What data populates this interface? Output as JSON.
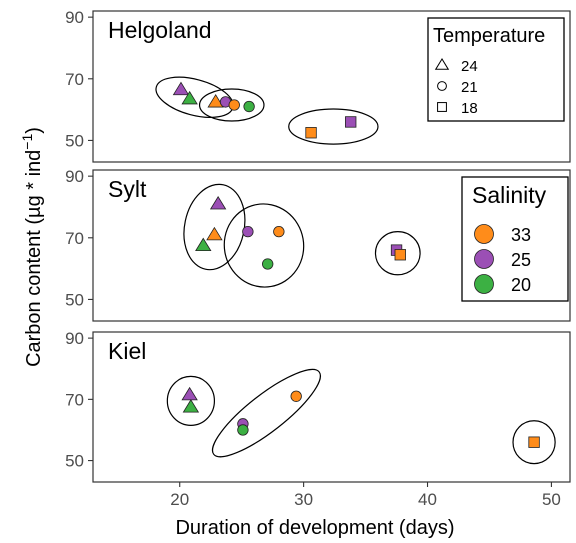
{
  "chart_data": {
    "type": "scatter",
    "xlabel": "Duration of development (days)",
    "ylabel": "Carbon content (µg * ind",
    "ylabel_superscript": "−1",
    "ylabel_suffix": ")",
    "xlim": [
      13,
      51.5
    ],
    "x_ticks": [
      20,
      30,
      40,
      50
    ],
    "ylim": [
      43,
      92
    ],
    "y_ticks": [
      50,
      70,
      90
    ],
    "grid": false,
    "colors": {
      "33": "#ff8c1a",
      "25": "#9b4fb5",
      "20": "#3cb043"
    },
    "legend_temperature": {
      "title": "Temperature",
      "placement": "top-right",
      "entries": [
        {
          "label": "24",
          "shape": "triangle"
        },
        {
          "label": "21",
          "shape": "circle"
        },
        {
          "label": "18",
          "shape": "square"
        }
      ]
    },
    "legend_salinity": {
      "title": "Salinity",
      "placement": "right",
      "entries": [
        {
          "label": "33",
          "color_key": "33"
        },
        {
          "label": "25",
          "color_key": "25"
        },
        {
          "label": "20",
          "color_key": "20"
        }
      ]
    },
    "facets": [
      {
        "name": "Helgoland",
        "points": [
          {
            "x": 20.1,
            "y": 66.5,
            "temperature": 24,
            "salinity": 25
          },
          {
            "x": 20.8,
            "y": 63.5,
            "temperature": 24,
            "salinity": 20
          },
          {
            "x": 22.9,
            "y": 62.5,
            "temperature": 24,
            "salinity": 33
          },
          {
            "x": 23.7,
            "y": 62.5,
            "temperature": 21,
            "salinity": 25
          },
          {
            "x": 24.4,
            "y": 61.5,
            "temperature": 21,
            "salinity": 33
          },
          {
            "x": 25.6,
            "y": 61.0,
            "temperature": 21,
            "salinity": 20
          },
          {
            "x": 30.6,
            "y": 52.5,
            "temperature": 18,
            "salinity": 33
          },
          {
            "x": 33.8,
            "y": 56.0,
            "temperature": 18,
            "salinity": 25
          }
        ],
        "clusters": [
          {
            "cx": 21.2,
            "cy": 64.0,
            "rx": 3.2,
            "ry": 5.8,
            "angle": 15
          },
          {
            "cx": 24.2,
            "cy": 61.5,
            "rx": 2.6,
            "ry": 5.2,
            "angle": 0
          },
          {
            "cx": 32.4,
            "cy": 54.5,
            "rx": 3.6,
            "ry": 5.7,
            "angle": 0
          }
        ]
      },
      {
        "name": "Sylt",
        "points": [
          {
            "x": 23.1,
            "y": 81.0,
            "temperature": 24,
            "salinity": 25
          },
          {
            "x": 22.8,
            "y": 71.0,
            "temperature": 24,
            "salinity": 33
          },
          {
            "x": 21.9,
            "y": 67.5,
            "temperature": 24,
            "salinity": 20
          },
          {
            "x": 25.5,
            "y": 72.0,
            "temperature": 21,
            "salinity": 25
          },
          {
            "x": 28.0,
            "y": 72.0,
            "temperature": 21,
            "salinity": 33
          },
          {
            "x": 27.1,
            "y": 61.5,
            "temperature": 21,
            "salinity": 20
          },
          {
            "x": 37.5,
            "y": 66.0,
            "temperature": 18,
            "salinity": 25
          },
          {
            "x": 37.8,
            "y": 64.5,
            "temperature": 18,
            "salinity": 33
          }
        ],
        "clusters": [
          {
            "cx": 22.8,
            "cy": 73.5,
            "rx": 2.4,
            "ry": 14.0,
            "angle": 12
          },
          {
            "cx": 26.8,
            "cy": 67.5,
            "rx": 3.2,
            "ry": 13.5,
            "angle": -10
          },
          {
            "cx": 37.6,
            "cy": 65.0,
            "rx": 1.8,
            "ry": 7.0,
            "angle": 0
          }
        ]
      },
      {
        "name": "Kiel",
        "points": [
          {
            "x": 20.8,
            "y": 71.5,
            "temperature": 24,
            "salinity": 25
          },
          {
            "x": 20.9,
            "y": 67.5,
            "temperature": 24,
            "salinity": 20
          },
          {
            "x": 25.1,
            "y": 62.0,
            "temperature": 21,
            "salinity": 25
          },
          {
            "x": 25.1,
            "y": 60.0,
            "temperature": 21,
            "salinity": 20
          },
          {
            "x": 29.4,
            "y": 71.0,
            "temperature": 21,
            "salinity": 33
          },
          {
            "x": 48.6,
            "y": 56.0,
            "temperature": 18,
            "salinity": 33
          }
        ],
        "clusters": [
          {
            "cx": 20.9,
            "cy": 69.5,
            "rx": 1.9,
            "ry": 8.0,
            "angle": 0
          },
          {
            "cx": 27.0,
            "cy": 65.5,
            "rx": 5.4,
            "ry": 6.0,
            "angle": -38
          },
          {
            "cx": 48.6,
            "cy": 56.0,
            "rx": 1.7,
            "ry": 7.0,
            "angle": 0
          }
        ]
      }
    ]
  }
}
